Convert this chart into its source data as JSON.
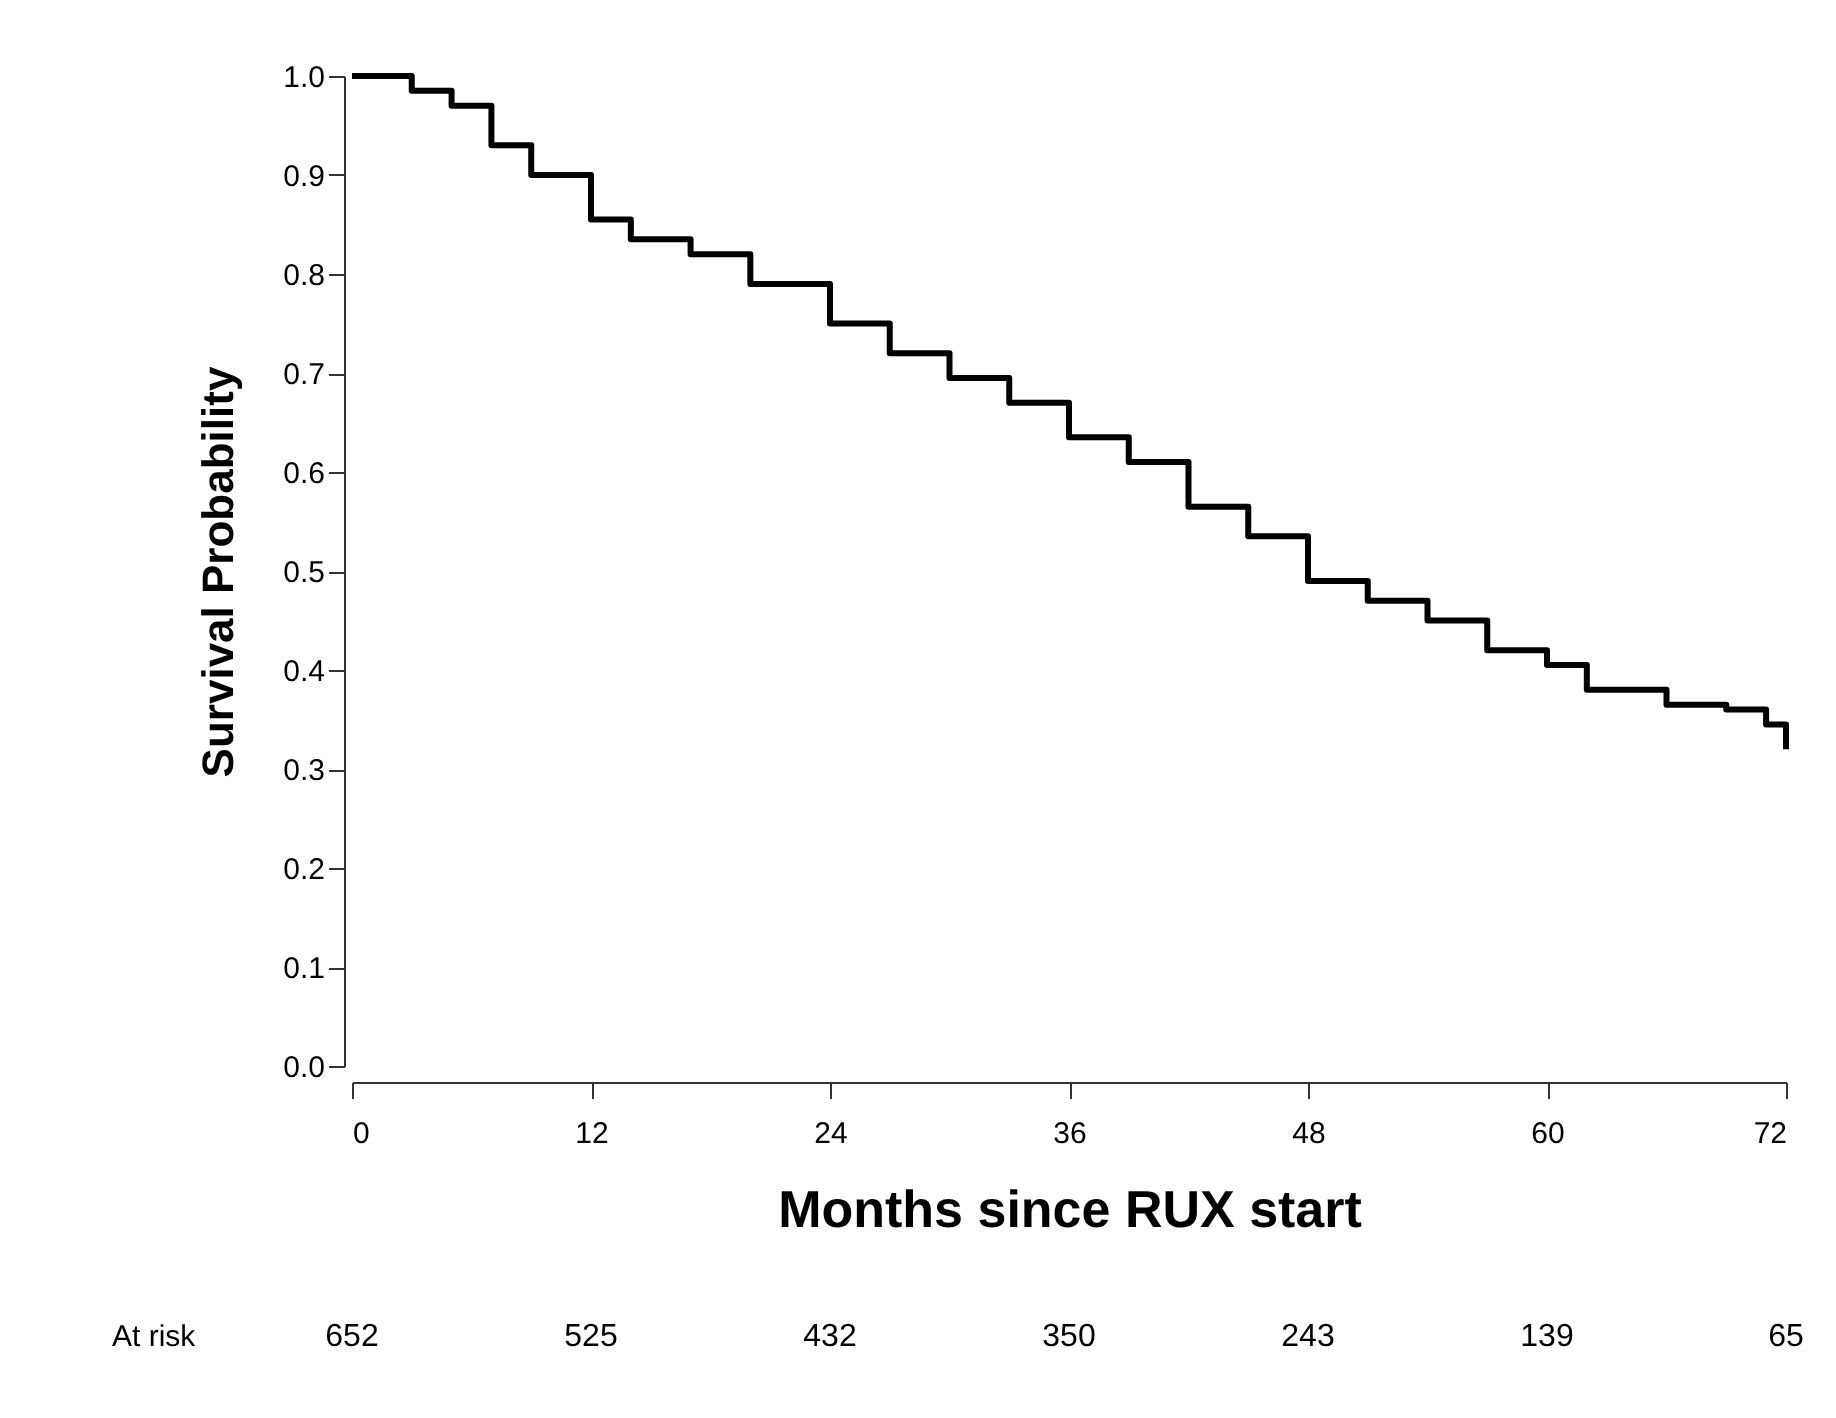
{
  "chart_data": {
    "type": "step",
    "xlabel": "Months since RUX start",
    "ylabel": "Survival Probability",
    "x": [
      0,
      3,
      5,
      7,
      9,
      12,
      14,
      17,
      20,
      24,
      27,
      30,
      33,
      36,
      39,
      42,
      45,
      48,
      51,
      54,
      57,
      60,
      62,
      66,
      69,
      71,
      72
    ],
    "series": [
      {
        "color": "#000000",
        "values": [
          1.0,
          0.985,
          0.97,
          0.93,
          0.9,
          0.855,
          0.835,
          0.82,
          0.79,
          0.75,
          0.72,
          0.695,
          0.67,
          0.635,
          0.61,
          0.565,
          0.535,
          0.49,
          0.47,
          0.45,
          0.42,
          0.405,
          0.38,
          0.365,
          0.36,
          0.345,
          0.32
        ]
      }
    ],
    "xlim": [
      0,
      72
    ],
    "xticks": [
      0,
      12,
      24,
      36,
      48,
      60,
      72
    ],
    "ylim": [
      0,
      1
    ],
    "yticks": [
      {
        "value": 0,
        "label": "0.0"
      },
      0.1,
      0.2,
      0.3,
      0.4,
      0.5,
      0.6,
      0.7,
      0.8,
      0.9,
      {
        "value": 1,
        "label": "1.0"
      }
    ],
    "grid": false,
    "marker": "none",
    "line_style": "solid",
    "annotations": [
      "At risk",
      "652",
      "525",
      "432",
      "350",
      "243",
      "139",
      "65"
    ]
  }
}
